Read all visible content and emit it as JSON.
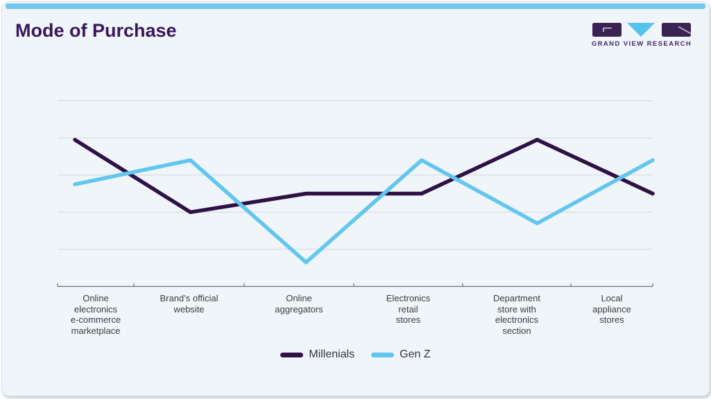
{
  "header": {
    "title": "Mode of Purchase"
  },
  "logo": {
    "name": "GRAND VIEW RESEARCH",
    "mark_icon": "gvr-monogram"
  },
  "chart_data": {
    "type": "line",
    "title": "Mode of Purchase",
    "categories": [
      "Online electronics e-commerce marketplace",
      "Brand’s official website",
      "Online aggregators",
      "Electronics retail stores",
      "Department store with electronics section",
      "Local appliance stores"
    ],
    "category_lines": [
      [
        "Online",
        "electronics",
        "e-commerce",
        "marketplace"
      ],
      [
        "Brand’s official",
        "website"
      ],
      [
        "Online",
        "aggregators"
      ],
      [
        "Electronics",
        "retail",
        "stores"
      ],
      [
        "Department",
        "store with",
        "electronics",
        "section"
      ],
      [
        "Local",
        "appliance",
        "stores"
      ]
    ],
    "series": [
      {
        "name": "Millenials",
        "color": "#2f1146",
        "values": [
          39.5,
          20,
          25,
          25,
          39.5,
          25
        ]
      },
      {
        "name": "Gen Z",
        "color": "#63c6ef",
        "values": [
          27.5,
          34,
          6.5,
          34,
          17,
          34
        ]
      }
    ],
    "xlabel": "",
    "ylabel": "",
    "ylim": [
      0,
      50
    ],
    "y_gridline_step": 10,
    "y_axis_labels_visible": false,
    "grid": "horizontal-only",
    "legend_position": "bottom-center"
  },
  "colors": {
    "accent_bar": "#72c7ef",
    "card_bg": "#eff5f9",
    "title": "#39175a",
    "millenials_line": "#2f1146",
    "genz_line": "#63c6ef",
    "gridline": "#d7d7d7",
    "axis": "#6e6e6e",
    "axis_label_text": "#3d3d3d",
    "legend_text": "#35353c",
    "logo_purple": "#3a2253",
    "logo_cyan": "#55c3ee",
    "logo_text": "#45286a"
  }
}
